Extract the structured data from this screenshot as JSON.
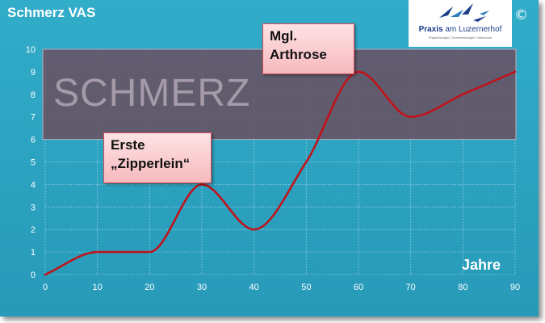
{
  "chart_data": {
    "type": "line",
    "title": "Schmerz VAS",
    "xlabel": "Jahre",
    "ylabel": "",
    "xlim": [
      0,
      90
    ],
    "ylim": [
      0,
      10
    ],
    "x_ticks": [
      0,
      10,
      20,
      30,
      40,
      50,
      60,
      70,
      80,
      90
    ],
    "y_ticks": [
      0,
      1,
      2,
      3,
      4,
      5,
      6,
      7,
      8,
      9,
      10
    ],
    "grid": true,
    "series": [
      {
        "color": "#c0131b",
        "points": [
          [
            0,
            0
          ],
          [
            10,
            1
          ],
          [
            20,
            1
          ],
          [
            30,
            4
          ],
          [
            40,
            2
          ],
          [
            50,
            5
          ],
          [
            60,
            9
          ],
          [
            70,
            7
          ],
          [
            80,
            8
          ],
          [
            90,
            9
          ]
        ]
      }
    ],
    "band": {
      "y_from": 6,
      "y_to": 10,
      "label": "SCHMERZ",
      "color": "#6d4a5c"
    },
    "annotations": [
      {
        "lines": [
          "Erste",
          "„Zipperlein“"
        ]
      },
      {
        "lines": [
          "Mgl.",
          "Arthrose"
        ]
      }
    ]
  },
  "logo": {
    "name_bold": "Praxis",
    "name_rest": " am Luzernerhof",
    "tagline": "Physiotherapie | Schmerztherapie | Velumount"
  },
  "copyright": "©",
  "colors": {
    "background": "#2ba3c2",
    "line": "#c0131b",
    "callout": "#f8c3c7"
  }
}
